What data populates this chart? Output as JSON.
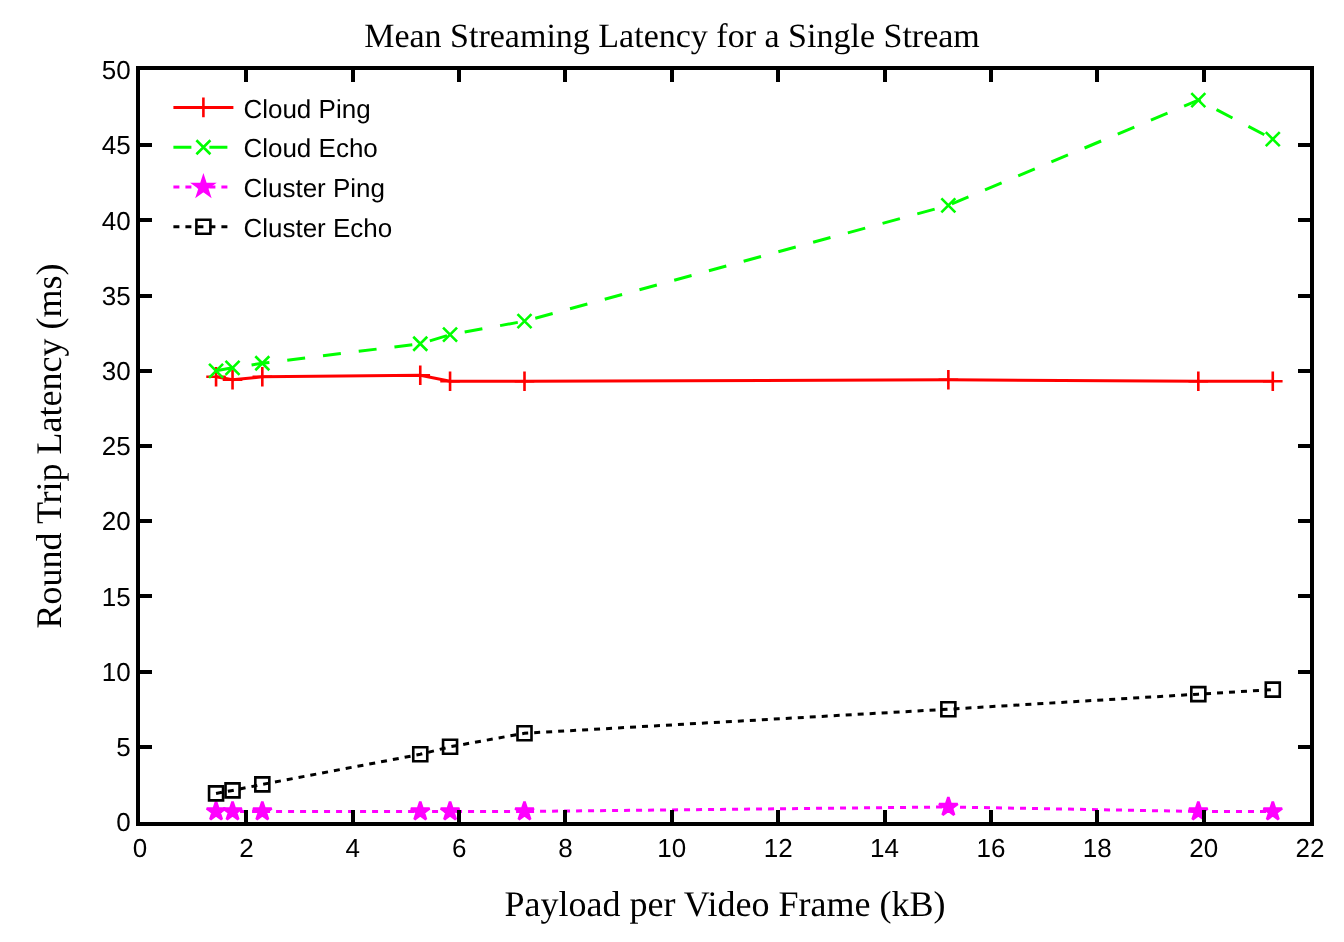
{
  "chart_data": {
    "type": "line",
    "title": "Mean Streaming Latency for a Single Stream",
    "xlabel": "Payload per Video Frame (kB)",
    "ylabel": "Round Trip Latency (ms)",
    "x": [
      1.43,
      1.74,
      2.3,
      5.27,
      5.83,
      7.23,
      15.2,
      19.9,
      21.3
    ],
    "series": [
      {
        "name": "Cloud Ping",
        "color": "#ff0000",
        "marker": "cross",
        "line_style": "solid",
        "values": [
          29.6,
          29.4,
          29.6,
          29.7,
          29.3,
          29.3,
          29.4,
          29.3,
          29.3
        ]
      },
      {
        "name": "Cloud Echo",
        "color": "#00ff00",
        "marker": "x",
        "line_style": "dashed",
        "values": [
          30.0,
          30.2,
          30.5,
          31.8,
          32.4,
          33.3,
          41.0,
          48.0,
          45.4
        ]
      },
      {
        "name": "Cluster Ping",
        "color": "#ff00ff",
        "marker": "star",
        "line_style": "dotted",
        "values": [
          0.7,
          0.7,
          0.7,
          0.7,
          0.7,
          0.7,
          1.0,
          0.7,
          0.7
        ]
      },
      {
        "name": "Cluster Echo",
        "color": "#000000",
        "marker": "square",
        "line_style": "dotted",
        "values": [
          1.9,
          2.1,
          2.5,
          4.5,
          5.0,
          5.9,
          7.5,
          8.5,
          8.8
        ]
      }
    ],
    "xlim": [
      0,
      22
    ],
    "xticks": [
      0,
      2,
      4,
      6,
      8,
      10,
      12,
      14,
      16,
      18,
      20,
      22
    ],
    "ylim": [
      0,
      50
    ],
    "yticks": [
      0,
      5,
      10,
      15,
      20,
      25,
      30,
      35,
      40,
      45,
      50
    ],
    "legend": "top left"
  }
}
